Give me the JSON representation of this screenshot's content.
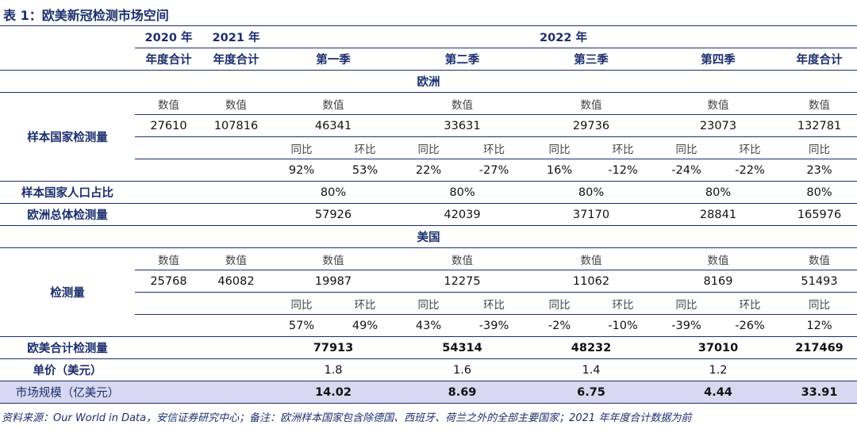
{
  "title": "表 1：欧美新冠检测市场空间",
  "header": {
    "years": [
      "2020 年",
      "2021 年",
      "2022 年"
    ],
    "columns": [
      "年度合计",
      "年度合计",
      "第一季",
      "第二季",
      "第三季",
      "第四季",
      "年度合计"
    ]
  },
  "europe": {
    "section": "欧洲",
    "metric": "样本国家检测量",
    "value_headers": [
      "数值",
      "数值",
      "数值",
      "数值",
      "数值",
      "数值",
      "数值"
    ],
    "values": [
      "27610",
      "107816",
      "46341",
      "33631",
      "29736",
      "23073",
      "132781"
    ],
    "change_headers": [
      "同比",
      "环比",
      "同比",
      "环比",
      "同比",
      "环比",
      "同比",
      "环比",
      "同比"
    ],
    "changes": [
      "92%",
      "53%",
      "22%",
      "-27%",
      "16%",
      "-12%",
      "-24%",
      "-22%",
      "23%"
    ],
    "population_share": {
      "label": "样本国家人口占比",
      "values": [
        "80%",
        "80%",
        "80%",
        "80%",
        "80%"
      ]
    },
    "total": {
      "label": "欧洲总体检测量",
      "values": [
        "57926",
        "42039",
        "37170",
        "28841",
        "165976"
      ]
    }
  },
  "us": {
    "section": "美国",
    "metric": "检测量",
    "value_headers": [
      "数值",
      "数值",
      "数值",
      "数值",
      "数值",
      "数值",
      "数值"
    ],
    "values": [
      "25768",
      "46082",
      "19987",
      "12275",
      "11062",
      "8169",
      "51493"
    ],
    "change_headers": [
      "同比",
      "环比",
      "同比",
      "环比",
      "同比",
      "环比",
      "同比",
      "环比",
      "同比"
    ],
    "changes": [
      "57%",
      "49%",
      "43%",
      "-39%",
      "-2%",
      "-10%",
      "-39%",
      "-26%",
      "12%"
    ]
  },
  "combined": {
    "label": "欧美合计检测量",
    "values": [
      "77913",
      "54314",
      "48232",
      "37010",
      "217469"
    ]
  },
  "unit_price": {
    "label": "单价（美元）",
    "values": [
      "1.8",
      "1.6",
      "1.4",
      "1.2"
    ]
  },
  "market_size": {
    "label": "市场规模（亿美元）",
    "values": [
      "14.02",
      "8.69",
      "6.75",
      "4.44",
      "33.91"
    ]
  },
  "source": "资料来源：Our World in Data，安信证券研究中心；备注：欧洲样本国家包含除德国、西班牙、荷兰之外的全部主要国家；2021 年年度合计数据为前"
}
